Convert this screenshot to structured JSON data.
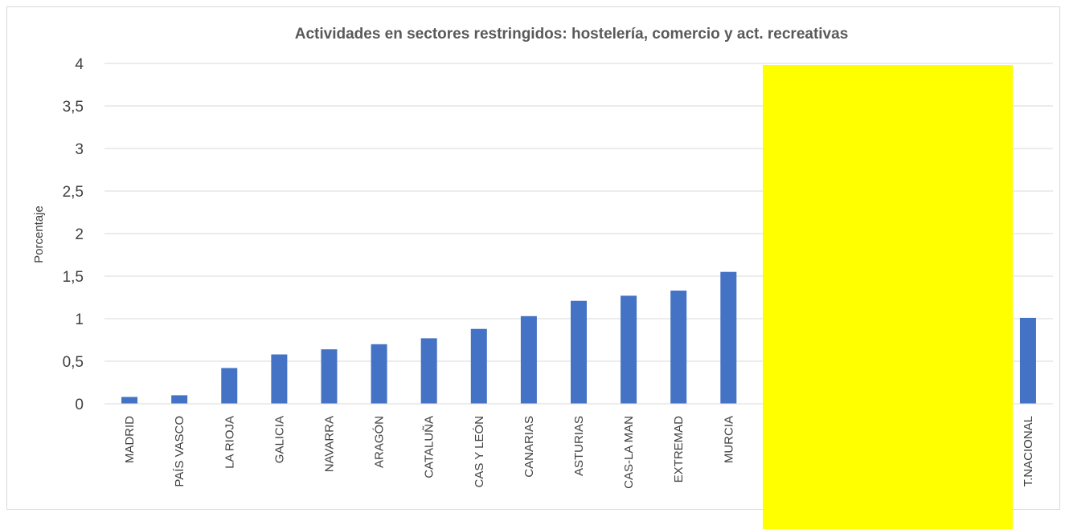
{
  "colors": {
    "bar": "#4472c4",
    "grid": "#d9d9d9",
    "highlight": "#ffff00"
  },
  "chart_data": {
    "type": "bar",
    "title": "Actividades en sectores restringidos: hostelería, comercio y act. recreativas",
    "xlabel": "",
    "ylabel": "Porcentaje",
    "ylim": [
      0,
      4
    ],
    "yticks": [
      "0",
      "0,5",
      "1",
      "1,5",
      "2",
      "2,5",
      "3",
      "3,5",
      "4"
    ],
    "grid": true,
    "legend": "none",
    "categories": [
      "MADRID",
      "PAÍS VASCO",
      "LA RIOJA",
      "GALICIA",
      "NAVARRA",
      "ARAGÓN",
      "CATALUÑA",
      "CAS Y LEÓN",
      "CANARIAS",
      "ASTURIAS",
      "CAS-LA MAN",
      "EXTREMAD",
      "MURCIA",
      "",
      "",
      "",
      "",
      "",
      "T.NACIONAL"
    ],
    "values": [
      0.08,
      0.1,
      0.42,
      0.58,
      0.64,
      0.7,
      0.77,
      0.88,
      1.03,
      1.21,
      1.27,
      1.33,
      1.55,
      null,
      null,
      null,
      null,
      null,
      1.01
    ],
    "occluded_categories": [
      13,
      14,
      15,
      16,
      17
    ]
  }
}
